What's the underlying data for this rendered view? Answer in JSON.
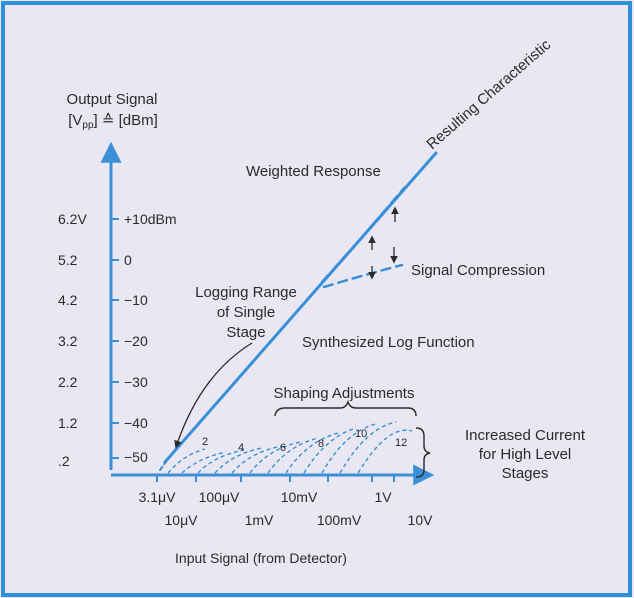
{
  "y_axis": {
    "title_line1": "Output Signal",
    "title_line2_prefix": "[V",
    "title_line2_sub": "pp",
    "title_line2_suffix": "] ≙ [dBm]",
    "volts": [
      "6.2V",
      "5.2",
      "4.2",
      "3.2",
      "2.2",
      "1.2",
      ".2"
    ],
    "dbm": [
      "+10dBm",
      "0",
      "−10",
      "−20",
      "−30",
      "−40",
      "−50"
    ]
  },
  "x_axis": {
    "title": "Input Signal (from Detector)",
    "ticks_upper": [
      "3.1μV",
      "100μV",
      "10mV",
      "1V"
    ],
    "ticks_lower": [
      "10μV",
      "1mV",
      "100mV",
      "10V"
    ]
  },
  "annotations": {
    "resulting": "Resulting Characteristic",
    "weighted": "Weighted Response",
    "compression": "Signal Compression",
    "logging_line1": "Logging Range",
    "logging_line2": "of Single",
    "logging_line3": "Stage",
    "synthesized": "Synthesized Log Function",
    "shaping": "Shaping Adjustments",
    "increased_line1": "Increased Current",
    "increased_line2": "for High Level",
    "increased_line3": "Stages"
  },
  "stage_numbers": [
    "2",
    "4",
    "6",
    "8",
    "10",
    "12"
  ],
  "colors": {
    "background": "#e9e8f2",
    "border": "#2f8fd8",
    "curve": "#3a8fd6",
    "text": "#2a2a2a"
  }
}
